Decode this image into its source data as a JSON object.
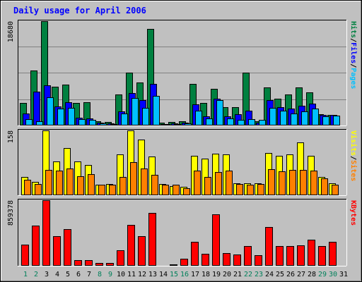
{
  "chart_data": {
    "type": "bar",
    "title": "Daily usage for April 2006",
    "days": [
      "1",
      "2",
      "3",
      "4",
      "5",
      "6",
      "7",
      "8",
      "9",
      "10",
      "11",
      "12",
      "13",
      "14",
      "15",
      "16",
      "17",
      "18",
      "19",
      "20",
      "21",
      "22",
      "23",
      "24",
      "25",
      "26",
      "27",
      "28",
      "29",
      "30",
      "31"
    ],
    "weekend_days": [
      "1",
      "2",
      "8",
      "9",
      "15",
      "16",
      "22",
      "23",
      "29",
      "30"
    ],
    "panels": [
      {
        "id": "hits_panel",
        "ymax": 18680,
        "ymax_label": "18680",
        "series": [
          {
            "name": "Hits",
            "color": "#008040",
            "values": [
              4000,
              9800,
              18680,
              7000,
              7300,
              4000,
              4200,
              800,
              600,
              5500,
              9500,
              7700,
              17300,
              500,
              600,
              700,
              7400,
              4000,
              6600,
              3300,
              3300,
              9500,
              700,
              6800,
              4800,
              5500,
              6800,
              5900,
              2000,
              1900,
              0
            ]
          },
          {
            "name": "Files",
            "color": "#0000ff",
            "values": [
              2100,
              6000,
              7200,
              3400,
              4200,
              1400,
              1200,
              500,
              400,
              2500,
              5800,
              4500,
              7400,
              300,
              400,
              500,
              3800,
              1600,
              4800,
              1600,
              2000,
              2600,
              500,
              4600,
              3300,
              3000,
              3500,
              3900,
              1900,
              1900,
              0
            ]
          },
          {
            "name": "Pages",
            "color": "#00c0ff",
            "values": [
              1100,
              700,
              5100,
              3000,
              3100,
              1100,
              1000,
              400,
              300,
              2100,
              4900,
              3100,
              5300,
              200,
              300,
              400,
              2700,
              1300,
              4600,
              1200,
              1000,
              1100,
              1000,
              3100,
              2600,
              2200,
              2500,
              3000,
              1600,
              1800,
              0
            ]
          }
        ],
        "axis_labels": [
          {
            "text": "Hits",
            "color": "#008040"
          },
          {
            "text": "/",
            "color": "#000000"
          },
          {
            "text": "Files",
            "color": "#0000ff"
          },
          {
            "text": "/",
            "color": "#000000"
          },
          {
            "text": "Pages",
            "color": "#00c0ff"
          }
        ]
      },
      {
        "id": "visits_panel",
        "ymax": 158,
        "ymax_label": "158",
        "series": [
          {
            "name": "Visits",
            "color": "#ffff00",
            "values": [
              44,
              32,
              158,
              82,
              115,
              82,
              73,
              25,
              28,
              100,
              158,
              136,
              95,
              28,
              23,
              20,
              97,
              90,
              102,
              100,
              30,
              30,
              30,
              103,
              96,
              100,
              129,
              96,
              45,
              30,
              0
            ]
          },
          {
            "name": "Sites",
            "color": "#ff8000",
            "values": [
              38,
              28,
              62,
              60,
              65,
              46,
              52,
              25,
              26,
              44,
              80,
              66,
              50,
              25,
              25,
              18,
              60,
              44,
              56,
              60,
              28,
              26,
              27,
              63,
              59,
              61,
              62,
              60,
              42,
              25,
              0
            ]
          }
        ],
        "axis_labels": [
          {
            "text": "Visits",
            "color": "#ffff00"
          },
          {
            "text": "/",
            "color": "#000000"
          },
          {
            "text": "Sites",
            "color": "#ff8000"
          }
        ]
      },
      {
        "id": "kbytes_panel",
        "ymax": 859378,
        "ymax_label": "859378",
        "series": [
          {
            "name": "KBytes",
            "color": "#ff0000",
            "values": [
              275000,
              530000,
              859378,
              385000,
              480000,
              70000,
              70000,
              40000,
              35000,
              200000,
              540000,
              385000,
              690000,
              0,
              20000,
              90000,
              310000,
              155000,
              675000,
              170000,
              150000,
              260000,
              140000,
              505000,
              260000,
              255000,
              265000,
              340000,
              255000,
              315000,
              0
            ]
          }
        ],
        "axis_labels": [
          {
            "text": "KBytes",
            "color": "#ff0000"
          }
        ]
      }
    ]
  }
}
